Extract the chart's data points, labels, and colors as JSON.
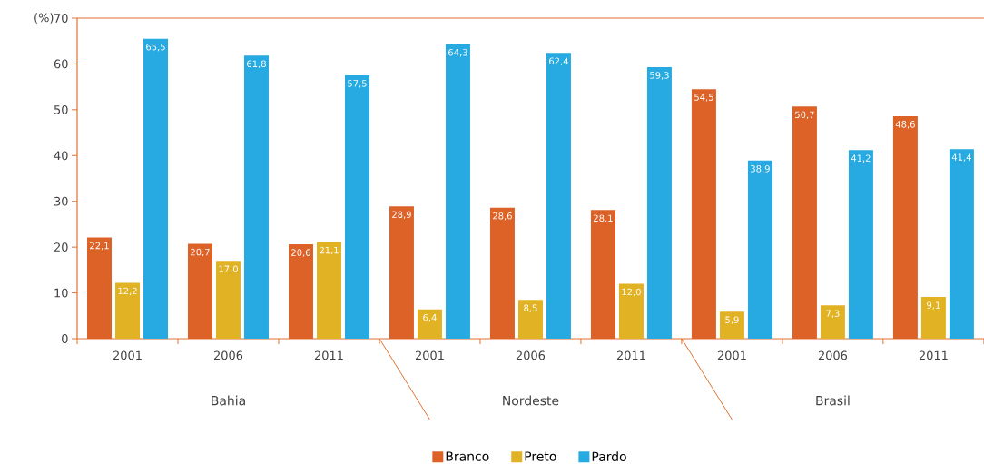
{
  "chart_data": {
    "type": "bar",
    "categories": [
      "2001",
      "2006",
      "2011",
      "2001",
      "2006",
      "2011",
      "2001",
      "2006",
      "2011"
    ],
    "series": [
      {
        "name": "Branco",
        "color": "#dc6228",
        "values": [
          22.1,
          20.7,
          20.6,
          28.9,
          28.6,
          28.1,
          54.5,
          50.7,
          48.6
        ],
        "value_labels": [
          "22,1",
          "20,7",
          "20,6",
          "28,9",
          "28,6",
          "28,1",
          "54,5",
          "50,7",
          "48,6"
        ]
      },
      {
        "name": "Preto",
        "color": "#e2b225",
        "values": [
          12.2,
          17.0,
          21.1,
          6.4,
          8.5,
          12.0,
          5.9,
          7.3,
          9.1
        ],
        "value_labels": [
          "12,2",
          "17,0",
          "21,1",
          "6,4",
          "8,5",
          "12,0",
          "5,9",
          "7,3",
          "9,1"
        ]
      },
      {
        "name": "Pardo",
        "color": "#27aae1",
        "values": [
          65.5,
          61.8,
          57.5,
          64.3,
          62.4,
          59.3,
          38.9,
          41.2,
          41.4
        ],
        "value_labels": [
          "65,5",
          "61,8",
          "57,5",
          "64,3",
          "62,4",
          "59,3",
          "38,9",
          "41,2",
          "41,4"
        ]
      }
    ],
    "ylabel": "(%)",
    "ylim": [
      0,
      70
    ],
    "yticks": [
      0,
      10,
      20,
      30,
      40,
      50,
      60,
      70
    ],
    "annotations": [
      "Bahia",
      "Nordeste",
      "Brasil"
    ],
    "grid": false,
    "legend": "bottom"
  }
}
